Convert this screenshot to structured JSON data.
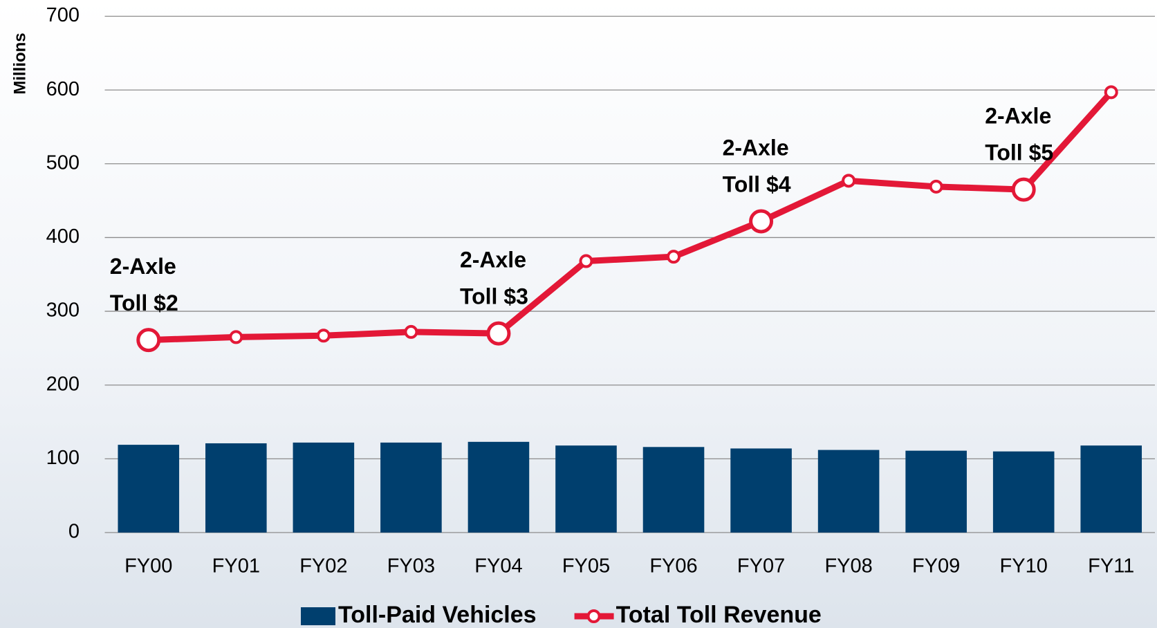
{
  "chart_data": {
    "type": "bar-line",
    "y_label": "Millions",
    "categories": [
      "FY00",
      "FY01",
      "FY02",
      "FY03",
      "FY04",
      "FY05",
      "FY06",
      "FY07",
      "FY08",
      "FY09",
      "FY10",
      "FY11"
    ],
    "series": [
      {
        "name": "Toll-Paid Vehicles",
        "type": "bar",
        "color": "#003f6e",
        "values": [
          119,
          121,
          122,
          122,
          123,
          118,
          116,
          114,
          112,
          111,
          110,
          118
        ]
      },
      {
        "name": "Total Toll Revenue",
        "type": "line",
        "color": "#e31837",
        "values": [
          261,
          265,
          267,
          272,
          270,
          368,
          374,
          422,
          477,
          469,
          465,
          597
        ]
      }
    ],
    "annotations": [
      {
        "category": "FY00",
        "lines": [
          "2-Axle",
          "Toll $2"
        ]
      },
      {
        "category": "FY04",
        "lines": [
          "2-Axle",
          "Toll $3"
        ]
      },
      {
        "category": "FY07",
        "lines": [
          "2-Axle",
          "Toll $4"
        ]
      },
      {
        "category": "FY10",
        "lines": [
          "2-Axle",
          "Toll $5"
        ]
      }
    ],
    "ylim": [
      0,
      700
    ],
    "yticks": [
      0,
      100,
      200,
      300,
      400,
      500,
      600,
      700
    ],
    "grid": true,
    "legend": "bottom"
  }
}
